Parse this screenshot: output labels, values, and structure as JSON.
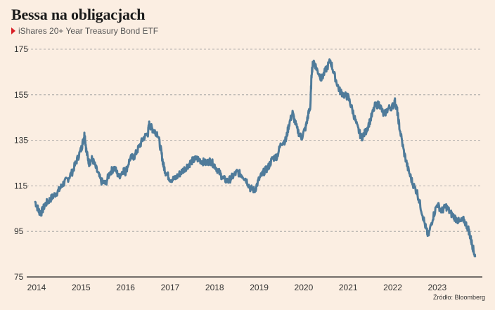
{
  "header": {
    "title": "Bessa na obligacjach",
    "subtitle": "iShares 20+ Year Treasury Bond ETF",
    "source": "Źródło: Bloomberg"
  },
  "colors": {
    "background": "#fbeee2",
    "line": "#4f7b9a",
    "marker": "#d91f26",
    "grid": "#9a9a9a"
  },
  "chart_data": {
    "type": "line",
    "title": "Bessa na obligacjach",
    "subtitle": "iShares 20+ Year Treasury Bond ETF",
    "xlabel": "",
    "ylabel": "",
    "xlim": [
      2014.0,
      2023.95
    ],
    "ylim": [
      75,
      175
    ],
    "y_ticks": [
      175,
      155,
      135,
      115,
      95,
      75
    ],
    "x_ticks": [
      "2014",
      "2015",
      "2016",
      "2017",
      "2018",
      "2019",
      "2020",
      "2021",
      "2022",
      "2023"
    ],
    "grid": "horizontal dashed",
    "series": [
      {
        "x": [
          2013.97,
          2014.05,
          2014.1,
          2014.2,
          2014.3,
          2014.4,
          2014.5,
          2014.6,
          2014.7,
          2014.8,
          2014.9,
          2015.0,
          2015.05,
          2015.08,
          2015.12,
          2015.18,
          2015.25,
          2015.35,
          2015.45,
          2015.55,
          2015.65,
          2015.75,
          2015.85,
          2015.95,
          2016.0,
          2016.1,
          2016.2,
          2016.3,
          2016.4,
          2016.5,
          2016.53,
          2016.6,
          2016.65,
          2016.72,
          2016.8,
          2016.85,
          2016.9,
          2017.0,
          2017.1,
          2017.2,
          2017.3,
          2017.4,
          2017.5,
          2017.6,
          2017.7,
          2017.8,
          2017.9,
          2018.0,
          2018.1,
          2018.2,
          2018.3,
          2018.4,
          2018.5,
          2018.6,
          2018.7,
          2018.8,
          2018.9,
          2019.0,
          2019.1,
          2019.2,
          2019.3,
          2019.4,
          2019.5,
          2019.6,
          2019.67,
          2019.75,
          2019.85,
          2019.95,
          2020.05,
          2020.1,
          2020.15,
          2020.18,
          2020.22,
          2020.3,
          2020.4,
          2020.5,
          2020.6,
          2020.7,
          2020.8,
          2020.9,
          2021.0,
          2021.1,
          2021.2,
          2021.3,
          2021.4,
          2021.5,
          2021.6,
          2021.7,
          2021.8,
          2021.9,
          2022.0,
          2022.05,
          2022.1,
          2022.15,
          2022.25,
          2022.35,
          2022.45,
          2022.55,
          2022.65,
          2022.75,
          2022.8,
          2022.9,
          2023.0,
          2023.1,
          2023.2,
          2023.3,
          2023.4,
          2023.5,
          2023.6,
          2023.7,
          2023.75,
          2023.8,
          2023.85
        ],
        "values": [
          108,
          104,
          103,
          107,
          109,
          111,
          113,
          116,
          118,
          121,
          126,
          131,
          135,
          138,
          130,
          125,
          127,
          122,
          117,
          116,
          121,
          123,
          119,
          122,
          121,
          127,
          128,
          132,
          136,
          138,
          142,
          140,
          139,
          138,
          130,
          124,
          121,
          118,
          118,
          120,
          122,
          124,
          126,
          127,
          126,
          125,
          126,
          124,
          121,
          118,
          117,
          119,
          121,
          120,
          118,
          114,
          113,
          118,
          121,
          123,
          127,
          128,
          134,
          135,
          142,
          147,
          140,
          136,
          141,
          146,
          150,
          165,
          170,
          166,
          162,
          166,
          170,
          163,
          157,
          155,
          154,
          148,
          141,
          136,
          139,
          144,
          150,
          151,
          146,
          149,
          150,
          152,
          148,
          141,
          130,
          122,
          116,
          112,
          104,
          96,
          93,
          101,
          107,
          104,
          106,
          103,
          101,
          99,
          100,
          96,
          92,
          88,
          84
        ]
      }
    ]
  }
}
